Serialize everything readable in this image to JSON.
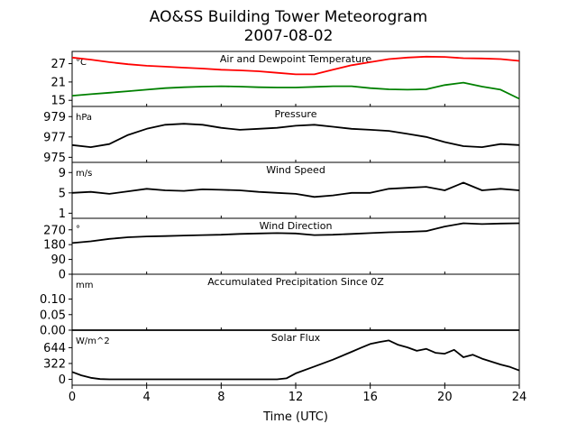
{
  "figure": {
    "title_line1": "AO&SS Building Tower Meteorogram",
    "title_line2": "2007-08-02",
    "xlabel": "Time (UTC)",
    "x_ticks": [
      0,
      4,
      8,
      12,
      16,
      20,
      24
    ],
    "xlim": [
      0,
      24
    ]
  },
  "chart_data": [
    {
      "type": "line",
      "panel": "temperature",
      "title": "Air and Dewpoint Temperature",
      "unit": "°C",
      "ylim": [
        13,
        31
      ],
      "yticks": [
        15,
        21,
        27
      ],
      "series": [
        {
          "key": "air",
          "color": "#ff0000",
          "x": [
            0,
            1,
            2,
            3,
            4,
            5,
            6,
            7,
            8,
            9,
            10,
            11,
            12,
            13,
            14,
            15,
            16,
            17,
            18,
            19,
            20,
            21,
            22,
            23,
            24
          ],
          "y": [
            29,
            28.3,
            27.5,
            26.8,
            26.3,
            26,
            25.7,
            25.4,
            25,
            24.8,
            24.5,
            24,
            23.5,
            23.5,
            25,
            26.5,
            27.5,
            28.5,
            29,
            29.3,
            29.2,
            28.8,
            28.7,
            28.5,
            27.9
          ]
        },
        {
          "key": "dewpoint",
          "color": "#008000",
          "x": [
            0,
            1,
            2,
            3,
            4,
            5,
            6,
            7,
            8,
            9,
            10,
            11,
            12,
            13,
            14,
            15,
            16,
            17,
            18,
            19,
            20,
            21,
            22,
            23,
            24
          ],
          "y": [
            16.5,
            17,
            17.5,
            18,
            18.5,
            19,
            19.3,
            19.5,
            19.6,
            19.5,
            19.3,
            19.2,
            19.2,
            19.4,
            19.6,
            19.6,
            19,
            18.6,
            18.5,
            18.6,
            20,
            20.8,
            19.5,
            18.5,
            15.5
          ]
        }
      ]
    },
    {
      "type": "line",
      "panel": "pressure",
      "title": "Pressure",
      "unit": "hPa",
      "ylim": [
        974.5,
        980
      ],
      "yticks": [
        975,
        977,
        979
      ],
      "series": [
        {
          "key": "pressure",
          "color": "#000000",
          "x": [
            0,
            1,
            2,
            3,
            4,
            5,
            6,
            7,
            8,
            9,
            10,
            11,
            12,
            13,
            14,
            15,
            16,
            17,
            18,
            19,
            20,
            21,
            22,
            23,
            24
          ],
          "y": [
            976.2,
            976,
            976.3,
            977.2,
            977.8,
            978.2,
            978.3,
            978.2,
            977.9,
            977.7,
            977.8,
            977.9,
            978.1,
            978.2,
            978,
            977.8,
            977.7,
            977.6,
            977.3,
            977,
            976.5,
            976.1,
            976,
            976.3,
            976.2
          ]
        }
      ]
    },
    {
      "type": "line",
      "panel": "wind_speed",
      "title": "Wind Speed",
      "unit": "m/s",
      "ylim": [
        0,
        11
      ],
      "yticks": [
        1,
        5,
        9
      ],
      "series": [
        {
          "key": "wind_speed",
          "color": "#000000",
          "x": [
            0,
            1,
            2,
            3,
            4,
            5,
            6,
            7,
            8,
            9,
            10,
            11,
            12,
            13,
            14,
            15,
            16,
            17,
            18,
            19,
            20,
            21,
            22,
            23,
            24
          ],
          "y": [
            5,
            5.2,
            4.8,
            5.3,
            5.8,
            5.5,
            5.4,
            5.7,
            5.6,
            5.5,
            5.2,
            5,
            4.8,
            4.2,
            4.5,
            5,
            5,
            5.8,
            6,
            6.2,
            5.5,
            7,
            5.5,
            5.8,
            5.5
          ]
        }
      ]
    },
    {
      "type": "line",
      "panel": "wind_direction",
      "title": "Wind Direction",
      "unit": "°",
      "ylim": [
        0,
        340
      ],
      "yticks": [
        0,
        90,
        180,
        270
      ],
      "series": [
        {
          "key": "wind_direction",
          "color": "#000000",
          "x": [
            0,
            1,
            2,
            3,
            4,
            5,
            6,
            7,
            8,
            9,
            10,
            11,
            12,
            13,
            14,
            15,
            16,
            17,
            18,
            19,
            20,
            21,
            22,
            23,
            24
          ],
          "y": [
            190,
            200,
            215,
            225,
            230,
            232,
            235,
            238,
            240,
            245,
            248,
            250,
            248,
            238,
            240,
            245,
            250,
            255,
            258,
            262,
            290,
            310,
            305,
            308,
            310
          ]
        }
      ]
    },
    {
      "type": "line",
      "panel": "precipitation",
      "title": "Accumulated Precipitation Since 0Z",
      "unit": "mm",
      "ylim": [
        0,
        0.18
      ],
      "yticks": [
        0.0,
        0.05,
        0.1
      ],
      "ytick_labels": [
        "0.00",
        "0.05",
        "0.10"
      ],
      "series": [
        {
          "key": "precip",
          "color": "#000000",
          "x": [
            0,
            24
          ],
          "y": [
            0,
            0
          ]
        }
      ]
    },
    {
      "type": "line",
      "panel": "solar_flux",
      "title": "Solar Flux",
      "unit": "W/m^2",
      "ylim": [
        -120,
        1000
      ],
      "yticks": [
        0,
        322,
        644
      ],
      "series": [
        {
          "key": "solar",
          "color": "#000000",
          "x": [
            0,
            0.5,
            1,
            1.5,
            2,
            4,
            6,
            8,
            10,
            11,
            11.5,
            12,
            13,
            14,
            15,
            15.5,
            16,
            16.5,
            17,
            17.5,
            18,
            18.5,
            19,
            19.5,
            20,
            20.5,
            21,
            21.5,
            22,
            22.5,
            23,
            23.5,
            24
          ],
          "y": [
            150,
            80,
            30,
            5,
            0,
            0,
            0,
            0,
            0,
            0,
            20,
            120,
            260,
            400,
            560,
            640,
            720,
            760,
            790,
            700,
            650,
            580,
            620,
            540,
            520,
            600,
            450,
            500,
            420,
            360,
            300,
            250,
            180
          ]
        }
      ]
    }
  ]
}
